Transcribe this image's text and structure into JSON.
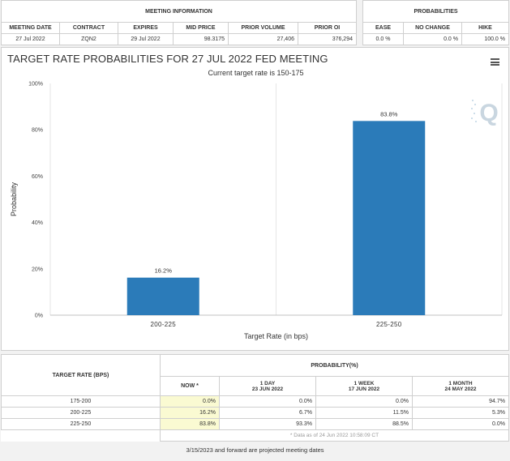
{
  "meeting_info": {
    "section_title": "MEETING INFORMATION",
    "headers": [
      "MEETING DATE",
      "CONTRACT",
      "EXPIRES",
      "MID PRICE",
      "PRIOR VOLUME",
      "PRIOR OI"
    ],
    "row": [
      "27 Jul 2022",
      "ZQN2",
      "29 Jul 2022",
      "98.3175",
      "27,406",
      "376,294"
    ]
  },
  "probabilities": {
    "section_title": "PROBABILITIES",
    "headers": [
      "EASE",
      "NO CHANGE",
      "HIKE"
    ],
    "row": [
      "0.0 %",
      "0.0 %",
      "100.0 %"
    ]
  },
  "chart": {
    "title": "TARGET RATE PROBABILITIES FOR 27 JUL 2022 FED MEETING",
    "subtitle": "Current target rate is 150-175",
    "menu_icon": "hamburger-menu-icon",
    "logo": "Q"
  },
  "chart_data": {
    "type": "bar",
    "title": "TARGET RATE PROBABILITIES FOR 27 JUL 2022 FED MEETING",
    "subtitle": "Current target rate is 150-175",
    "categories": [
      "200-225",
      "225-250"
    ],
    "values": [
      16.2,
      83.8
    ],
    "value_labels": [
      "16.2%",
      "83.8%"
    ],
    "xlabel": "Target Rate (in bps)",
    "ylabel": "Probability",
    "ylim": [
      0,
      100
    ],
    "yticks": [
      0,
      20,
      40,
      60,
      80,
      100
    ],
    "ytick_labels": [
      "0%",
      "20%",
      "40%",
      "60%",
      "80%",
      "100%"
    ],
    "bar_color": "#2b7bb9",
    "grid": "vertical category lines"
  },
  "target_table": {
    "row_header": "TARGET RATE (BPS)",
    "prob_header": "PROBABILITY(%)",
    "columns": [
      {
        "label": "NOW *",
        "date": ""
      },
      {
        "label": "1 DAY",
        "date": "23 JUN 2022"
      },
      {
        "label": "1 WEEK",
        "date": "17 JUN 2022"
      },
      {
        "label": "1 MONTH",
        "date": "24 MAY 2022"
      }
    ],
    "rows": [
      {
        "rate": "175-200",
        "values": [
          "0.0%",
          "0.0%",
          "0.0%",
          "94.7%"
        ]
      },
      {
        "rate": "200-225",
        "values": [
          "16.2%",
          "6.7%",
          "11.5%",
          "5.3%"
        ]
      },
      {
        "rate": "225-250",
        "values": [
          "83.8%",
          "93.3%",
          "88.5%",
          "0.0%"
        ]
      }
    ],
    "data_note": "* Data as of 24 Jun 2022 10:58:09 CT"
  },
  "footnote": "3/15/2023 and forward are projected meeting dates"
}
